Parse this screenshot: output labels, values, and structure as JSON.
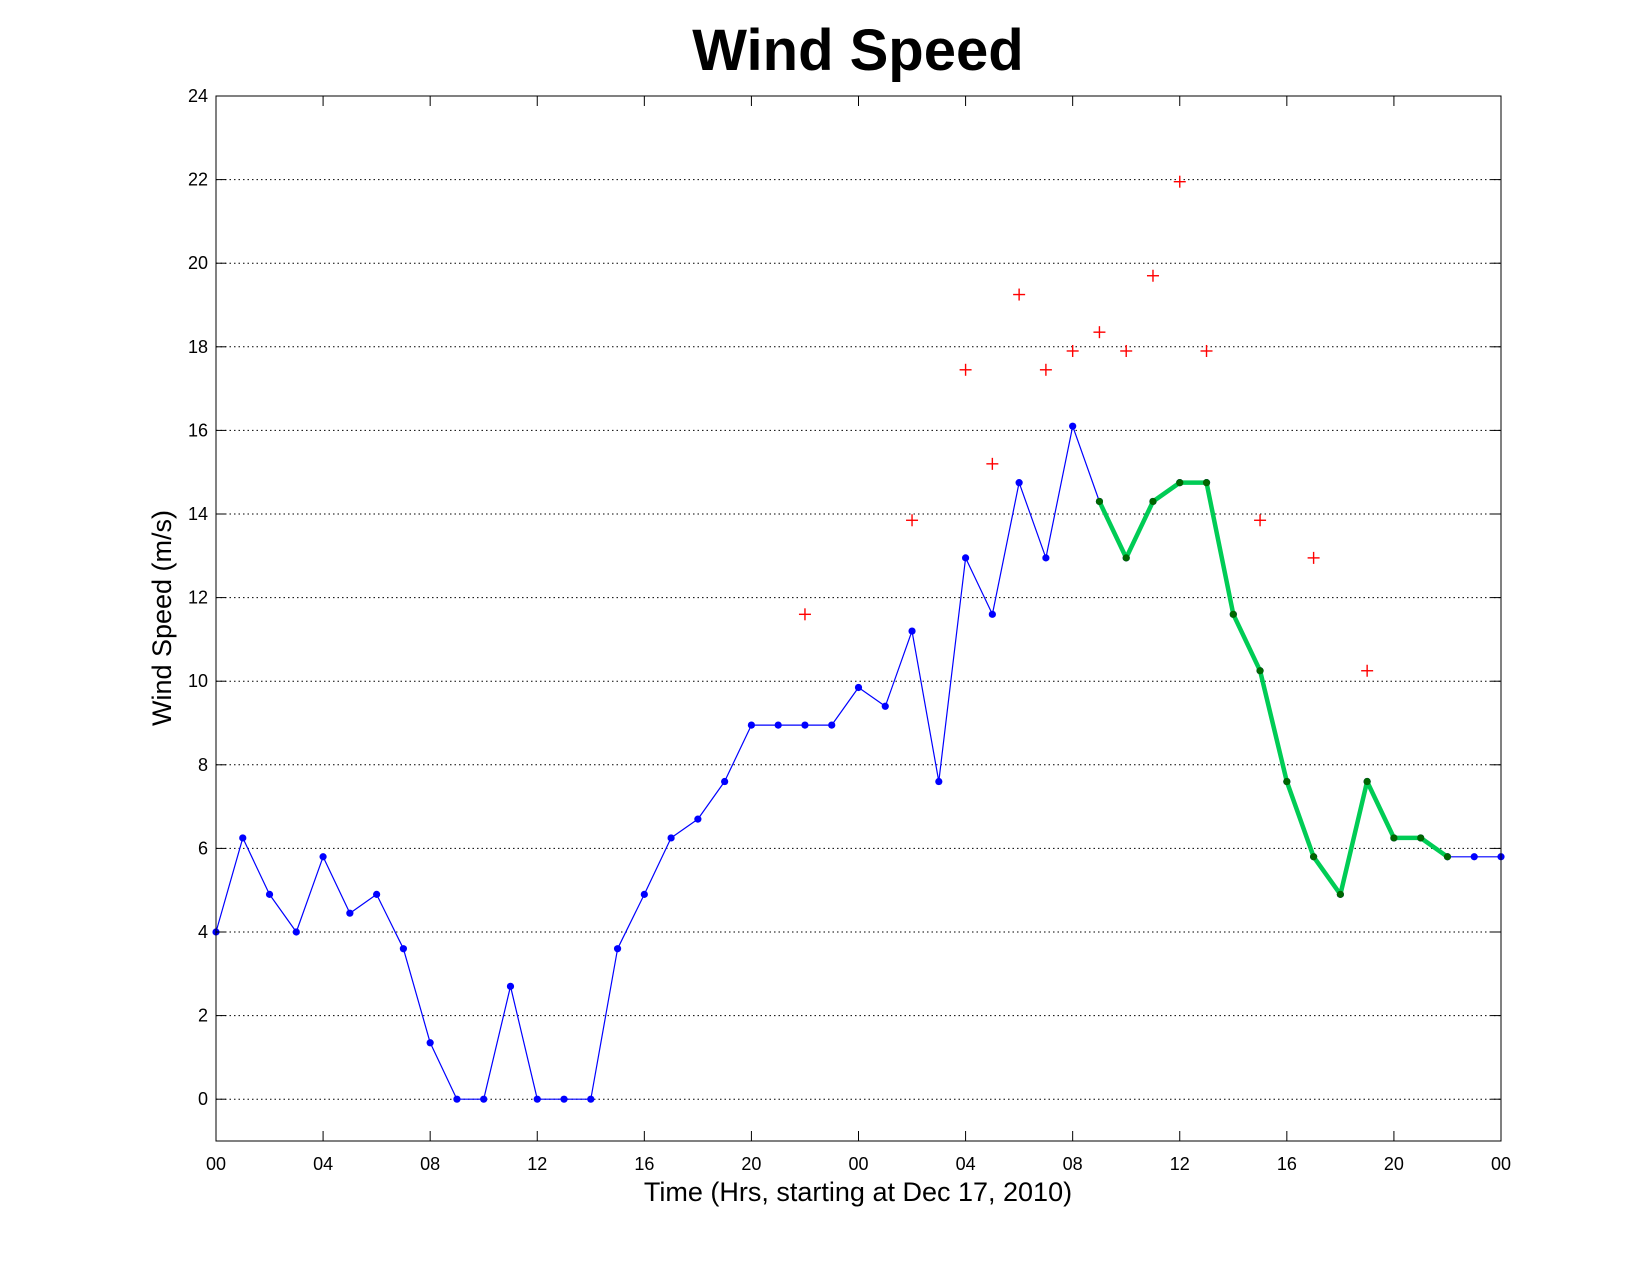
{
  "chart_data": {
    "type": "line",
    "title": "Wind Speed",
    "xlabel": "Time (Hrs, starting at Dec 17, 2010)",
    "ylabel": "Wind Speed (m/s)",
    "xlim": [
      0,
      48
    ],
    "ylim": [
      -1,
      24
    ],
    "x_ticks": [
      0,
      4,
      8,
      12,
      16,
      20,
      24,
      28,
      32,
      36,
      40,
      44,
      48
    ],
    "x_tick_labels": [
      "00",
      "04",
      "08",
      "12",
      "16",
      "20",
      "00",
      "04",
      "08",
      "12",
      "16",
      "20",
      "00"
    ],
    "y_ticks": [
      0,
      2,
      4,
      6,
      8,
      10,
      12,
      14,
      16,
      18,
      20,
      22,
      24
    ],
    "y_tick_labels": [
      "0",
      "2",
      "4",
      "6",
      "8",
      "10",
      "12",
      "14",
      "16",
      "18",
      "20",
      "22",
      "24"
    ],
    "grid": "horizontal dotted",
    "legend": "none",
    "series": [
      {
        "style": "thin line with dot markers",
        "color": "#0000ff",
        "x": [
          0,
          1,
          2,
          3,
          4,
          5,
          6,
          7,
          8,
          9,
          10,
          11,
          12,
          13,
          14,
          15,
          16,
          17,
          18,
          19,
          20,
          21,
          22,
          23,
          24,
          25,
          26,
          27,
          28,
          29,
          30,
          31,
          32,
          33,
          34,
          35,
          36,
          37,
          38,
          39,
          40,
          41,
          42,
          43,
          44,
          45,
          46,
          47,
          48
        ],
        "values": [
          4.0,
          6.25,
          4.9,
          4.0,
          5.8,
          4.45,
          4.9,
          3.6,
          1.35,
          0,
          0,
          2.7,
          0,
          0,
          0,
          3.6,
          4.9,
          6.25,
          6.7,
          7.6,
          8.95,
          8.95,
          8.95,
          8.95,
          9.85,
          9.4,
          11.2,
          7.6,
          12.95,
          11.6,
          14.75,
          12.95,
          16.1,
          14.3,
          12.95,
          14.3,
          14.75,
          14.75,
          11.6,
          10.25,
          7.6,
          5.8,
          4.9,
          7.6,
          6.25,
          6.25,
          5.8,
          5.8,
          5.8
        ]
      },
      {
        "style": "thick line with dot markers",
        "color": "#00cc55",
        "marker_color": "#006600",
        "x": [
          33,
          34,
          35,
          36,
          37,
          38,
          39,
          40,
          41,
          42,
          43,
          44,
          45,
          46
        ],
        "values": [
          14.3,
          12.95,
          14.3,
          14.75,
          14.75,
          11.6,
          10.25,
          7.6,
          5.8,
          4.9,
          7.6,
          6.25,
          6.25,
          5.8
        ]
      },
      {
        "style": "plus markers",
        "color": "#ff0000",
        "x": [
          22,
          26,
          28,
          29,
          30,
          31,
          32,
          33,
          34,
          35,
          36,
          37,
          39,
          41,
          43
        ],
        "values": [
          11.6,
          13.85,
          17.45,
          15.2,
          19.25,
          17.45,
          17.9,
          18.35,
          17.9,
          19.7,
          21.95,
          17.9,
          13.85,
          12.95,
          10.25
        ]
      }
    ]
  }
}
